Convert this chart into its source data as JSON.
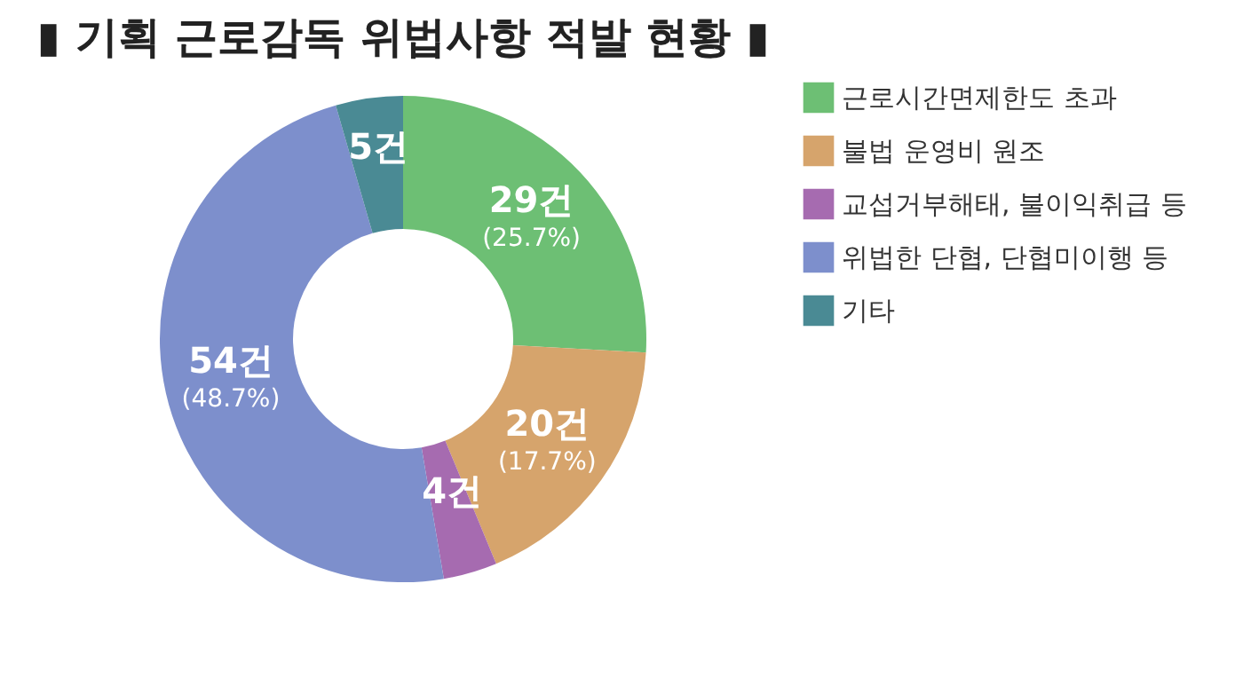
{
  "chart_data": {
    "type": "donut",
    "title": "▮ 기획 근로감독 위법사항 적발 현황 ▮",
    "categories": [
      "근로시간면제한도 초과",
      "불법 운영비 원조",
      "교섭거부해태, 불이익취급 등",
      "위법한 단협, 단협미이행 등",
      "기타"
    ],
    "values": [
      29,
      20,
      4,
      54,
      5
    ],
    "colors": [
      "#6dbf74",
      "#d6a46c",
      "#a66bb0",
      "#7d8fcc",
      "#4a8a94"
    ],
    "value_labels": [
      "29건\n(25.7%)",
      "20건\n(17.7%)",
      "4건",
      "54건\n(48.7%)",
      "5건"
    ],
    "legend": "right"
  }
}
